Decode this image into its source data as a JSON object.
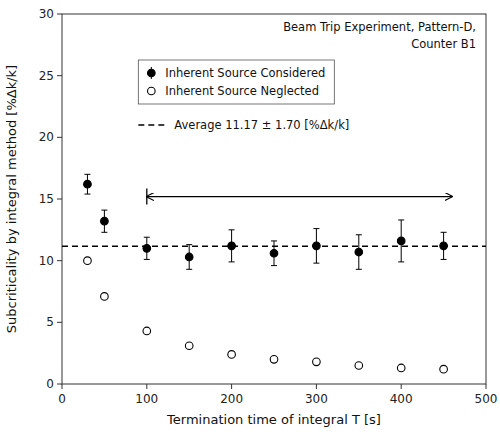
{
  "chart_data": {
    "type": "scatter",
    "title": "Beam Trip Experiment, Pattern-D,",
    "subtitle": "Counter B1",
    "x_label": "Termination time of integral T [s]",
    "y_label": "Subcriticality by integral method [%Δk/k]",
    "xlim": [
      0,
      500
    ],
    "ylim": [
      0,
      30
    ],
    "xticks": [
      0,
      100,
      200,
      300,
      400,
      500
    ],
    "yticks": [
      0,
      5,
      10,
      15,
      20,
      25,
      30
    ],
    "grid": false,
    "legend": "upper left",
    "series": [
      {
        "name": "Inherent Source Considered",
        "color": "black",
        "marker": "circle",
        "x": [
          30,
          50,
          100,
          150,
          200,
          250,
          300,
          350,
          400,
          450
        ],
        "values": [
          16.2,
          13.2,
          11.0,
          10.3,
          11.2,
          10.6,
          11.2,
          10.7,
          11.6,
          11.2
        ],
        "errors": [
          0.8,
          0.9,
          0.9,
          1.0,
          1.3,
          1.0,
          1.4,
          1.4,
          1.7,
          1.1
        ]
      },
      {
        "name": "Inherent Source Neglected",
        "color": "black",
        "marker": "ring",
        "x": [
          30,
          50,
          100,
          150,
          200,
          250,
          300,
          350,
          400,
          450
        ],
        "values": [
          10.0,
          7.1,
          4.3,
          3.1,
          2.4,
          2.0,
          1.8,
          1.5,
          1.3,
          1.2
        ]
      }
    ],
    "reference_line": {
      "value": 11.17,
      "label": "Average 11.17 ± 1.70 [%Δk/k]",
      "color": "black",
      "line_style": "dashed"
    },
    "arrow": {
      "x_start": 100,
      "x_end": 460,
      "y": 15.2,
      "color": "black"
    }
  }
}
